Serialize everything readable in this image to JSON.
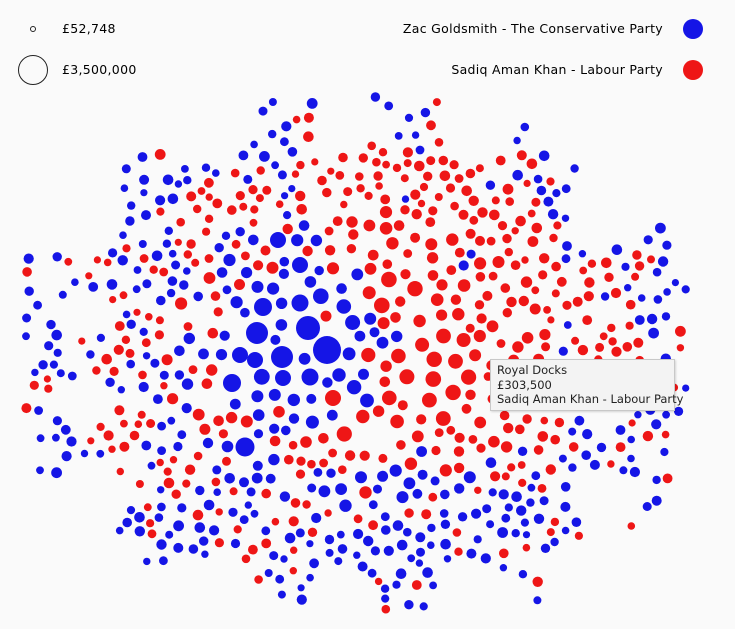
{
  "size_legend": {
    "small_label": "£52,748",
    "large_label": "£3,500,000"
  },
  "party_legend": [
    {
      "name": "Zac Goldsmith - The Conservative Party",
      "color": "#1515e6"
    },
    {
      "name": "Sadiq Aman Khan - Labour Party",
      "color": "#ee1616"
    }
  ],
  "tooltip": {
    "area": "Royal Docks",
    "value": "£303,500",
    "winner": "Sadiq Aman Khan - Labour Party"
  },
  "chart_data": {
    "type": "scatter",
    "encoding": "packed circles; circle area proportional to value, color = winning party",
    "size_range": [
      52748,
      3500000
    ],
    "series": [
      {
        "name": "Zac Goldsmith - The Conservative Party",
        "color": "#1515e6"
      },
      {
        "name": "Sadiq Aman Khan - Labour Party",
        "color": "#ee1616"
      }
    ]
  }
}
